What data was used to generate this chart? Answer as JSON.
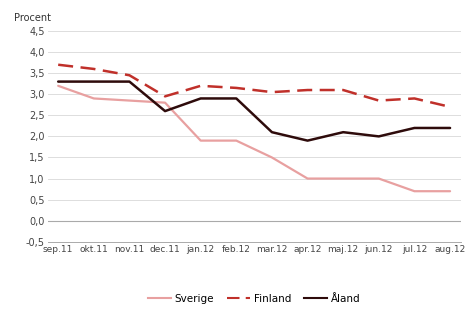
{
  "categories": [
    "sep.11",
    "okt.11",
    "nov.11",
    "dec.11",
    "jan.12",
    "feb.12",
    "mar.12",
    "apr.12",
    "maj.12",
    "jun.12",
    "jul.12",
    "aug.12"
  ],
  "sverige": [
    3.2,
    2.9,
    2.85,
    2.8,
    1.9,
    1.9,
    1.5,
    1.0,
    1.0,
    1.0,
    0.7,
    0.7
  ],
  "finland": [
    3.7,
    3.6,
    3.45,
    2.95,
    3.2,
    3.15,
    3.05,
    3.1,
    3.1,
    2.85,
    2.9,
    2.7
  ],
  "aland": [
    3.3,
    3.3,
    3.3,
    2.6,
    2.9,
    2.9,
    2.1,
    1.9,
    2.1,
    2.0,
    2.2,
    2.2
  ],
  "ylabel": "Procent",
  "ylim": [
    -0.5,
    4.5
  ],
  "yticks": [
    -0.5,
    0.0,
    0.5,
    1.0,
    1.5,
    2.0,
    2.5,
    3.0,
    3.5,
    4.0,
    4.5
  ],
  "ytick_labels": [
    "-0,5",
    "0,0",
    "0,5",
    "1,0",
    "1,5",
    "2,0",
    "2,5",
    "3,0",
    "3,5",
    "4,0",
    "4,5"
  ],
  "color_sverige": "#e8a0a0",
  "color_finland": "#c0302a",
  "color_aland": "#2e0b0b",
  "legend_labels": [
    "Sverige",
    "Finland",
    "Åland"
  ],
  "bg_color": "#ffffff",
  "grid_color": "#d8d8d8"
}
